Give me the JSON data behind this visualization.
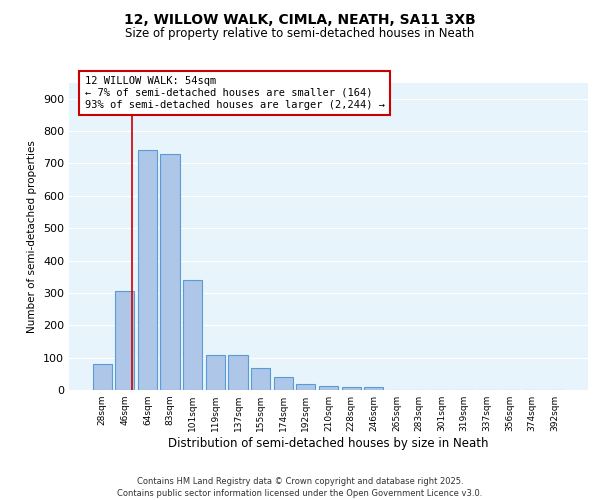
{
  "title_line1": "12, WILLOW WALK, CIMLA, NEATH, SA11 3XB",
  "title_line2": "Size of property relative to semi-detached houses in Neath",
  "xlabel": "Distribution of semi-detached houses by size in Neath",
  "ylabel": "Number of semi-detached properties",
  "categories": [
    "28sqm",
    "46sqm",
    "64sqm",
    "83sqm",
    "101sqm",
    "119sqm",
    "137sqm",
    "155sqm",
    "174sqm",
    "192sqm",
    "210sqm",
    "228sqm",
    "246sqm",
    "265sqm",
    "283sqm",
    "301sqm",
    "319sqm",
    "337sqm",
    "356sqm",
    "374sqm",
    "392sqm"
  ],
  "values": [
    80,
    305,
    740,
    728,
    340,
    108,
    108,
    68,
    40,
    18,
    12,
    8,
    8,
    0,
    0,
    0,
    0,
    0,
    0,
    0,
    0
  ],
  "bar_color": "#aec6e8",
  "bar_edge_color": "#5b9bd5",
  "bar_edge_width": 0.8,
  "vline_x": 1.3,
  "vline_color": "#cc0000",
  "annotation_text": "12 WILLOW WALK: 54sqm\n← 7% of semi-detached houses are smaller (164)\n93% of semi-detached houses are larger (2,244) →",
  "annotation_box_color": "#cc0000",
  "annotation_text_color": "#000000",
  "ylim": [
    0,
    950
  ],
  "yticks": [
    0,
    100,
    200,
    300,
    400,
    500,
    600,
    700,
    800,
    900
  ],
  "footer_text": "Contains HM Land Registry data © Crown copyright and database right 2025.\nContains public sector information licensed under the Open Government Licence v3.0.",
  "background_color": "#e8f4fb",
  "grid_color": "#ffffff",
  "fig_bg_color": "#ffffff"
}
